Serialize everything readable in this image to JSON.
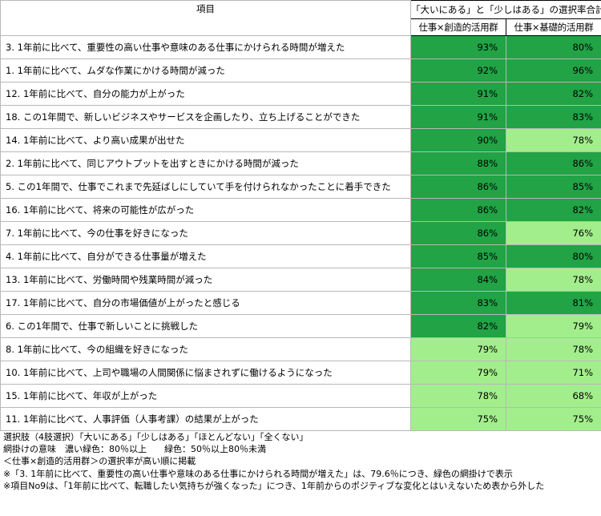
{
  "header": {
    "item_col": "項目",
    "group": "「大いにある」と「少しはある」の選択率合計",
    "col_creative": "仕事×創造的活用群",
    "col_basic": "仕事×基礎的活用群"
  },
  "rows": [
    {
      "label": "3. 1年前に比べて、重要性の高い仕事や意味のある仕事にかけられる時間が増えた",
      "creative": "93%",
      "basic": "80%"
    },
    {
      "label": "1. 1年前に比べて、ムダな作業にかける時間が減った",
      "creative": "92%",
      "basic": "96%"
    },
    {
      "label": "12. 1年前に比べて、自分の能力が上がった",
      "creative": "91%",
      "basic": "82%"
    },
    {
      "label": "18. この1年間で、新しいビジネスやサービスを企画したり、立ち上げることができた",
      "creative": "91%",
      "basic": "83%"
    },
    {
      "label": "14. 1年前に比べて、より高い成果が出せた",
      "creative": "90%",
      "basic": "78%"
    },
    {
      "label": "2. 1年前に比べて、同じアウトプットを出すときにかける時間が減った",
      "creative": "88%",
      "basic": "86%"
    },
    {
      "label": "5. この1年間で、仕事でこれまで先延ばしにしていて手を付けられなかったことに着手できた",
      "creative": "86%",
      "basic": "85%"
    },
    {
      "label": "16. 1年前に比べて、将来の可能性が広がった",
      "creative": "86%",
      "basic": "82%"
    },
    {
      "label": "7. 1年前に比べて、今の仕事を好きになった",
      "creative": "86%",
      "basic": "76%"
    },
    {
      "label": "4. 1年前に比べて、自分ができる仕事量が増えた",
      "creative": "85%",
      "basic": "80%"
    },
    {
      "label": "13. 1年前に比べて、労働時間や残業時間が減った",
      "creative": "84%",
      "basic": "78%"
    },
    {
      "label": "17. 1年前に比べて、自分の市場価値が上がったと感じる",
      "creative": "83%",
      "basic": "81%"
    },
    {
      "label": "6. この1年間で、仕事で新しいことに挑戦した",
      "creative": "82%",
      "basic": "79%"
    },
    {
      "label": "8. 1年前に比べて、今の組織を好きになった",
      "creative": "79%",
      "basic": "78%"
    },
    {
      "label": "10. 1年前に比べて、上司や職場の人間関係に悩まされずに働けるようになった",
      "creative": "79%",
      "basic": "71%"
    },
    {
      "label": "15. 1年前に比べて、年収が上がった",
      "creative": "78%",
      "basic": "68%"
    },
    {
      "label": "11. 1年前に比べて、人事評価（人事考課）の結果が上がった",
      "creative": "75%",
      "basic": "75%"
    }
  ],
  "colors": {
    "dark_green": "#21a346",
    "light_green": "#a3ee8c"
  },
  "notes": [
    "選択肢（4肢選択）「大いにある」「少しはある」「ほとんどない」「全くない」",
    "網掛けの意味　濃い緑色：80％以上　　緑色：50％以上80％未満",
    "＜仕事×創造的活用群＞の選択率が高い順に掲載",
    "※「3. 1年前に比べて、重要性の高い仕事や意味のある仕事にかけられる時間が増えた」は、79.6％につき、緑色の網掛けで表示",
    "※項目No9は、「1年前に比べて、転職したい気持ちが強くなった」につき、1年前からのポジティブな変化とはいえないため表から外した"
  ]
}
